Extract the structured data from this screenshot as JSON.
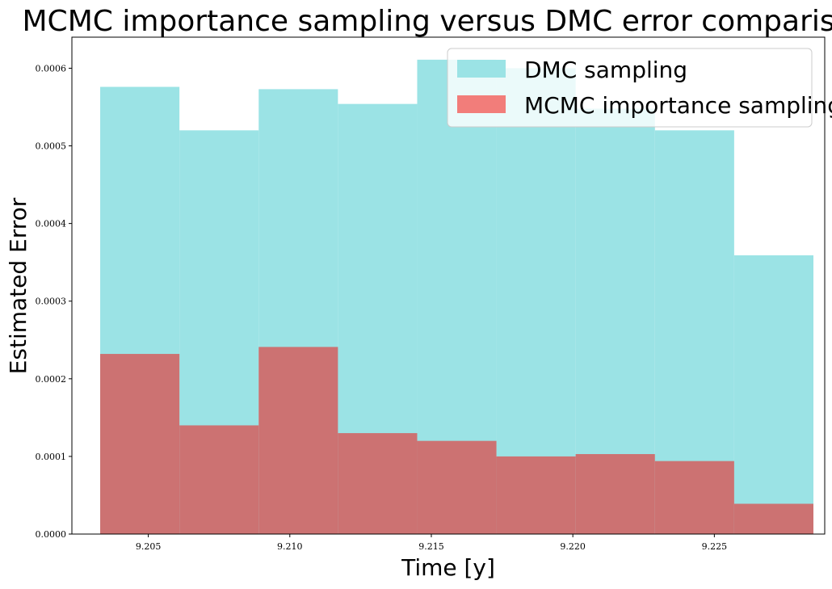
{
  "chart_data": {
    "type": "bar",
    "title": "MCMC importance sampling versus DMC error comparison",
    "xlabel": "Time [y]",
    "ylabel": "Estimated Error",
    "xlim": [
      9.2023,
      9.2289
    ],
    "ylim": [
      0,
      0.00064
    ],
    "grid": false,
    "legend_position": "top-right",
    "bin_edges": [
      9.2033,
      9.2061,
      9.2089,
      9.2117,
      9.2145,
      9.2173,
      9.2201,
      9.2229,
      9.2257,
      9.2285
    ],
    "series": [
      {
        "name": "DMC sampling",
        "color": "#9be3e5",
        "values": [
          0.000576,
          0.00052,
          0.000573,
          0.000554,
          0.000611,
          0.0006,
          0.000548,
          0.00052,
          0.000359
        ]
      },
      {
        "name": "MCMC importance sampling",
        "color": "#cc7272",
        "legend_color": "#f27d7a",
        "values": [
          0.000232,
          0.00014,
          0.000241,
          0.00013,
          0.00012,
          0.0001,
          0.000103,
          9.4e-05,
          3.9e-05
        ]
      }
    ],
    "x_ticks": [
      {
        "value": 9.205,
        "label": "9.205"
      },
      {
        "value": 9.21,
        "label": "9.210"
      },
      {
        "value": 9.215,
        "label": "9.215"
      },
      {
        "value": 9.22,
        "label": "9.220"
      },
      {
        "value": 9.225,
        "label": "9.225"
      }
    ],
    "y_ticks": [
      {
        "value": 0,
        "label": "0.0000"
      },
      {
        "value": 0.0001,
        "label": "0.0001"
      },
      {
        "value": 0.0002,
        "label": "0.0002"
      },
      {
        "value": 0.0003,
        "label": "0.0003"
      },
      {
        "value": 0.0004,
        "label": "0.0004"
      },
      {
        "value": 0.0005,
        "label": "0.0005"
      },
      {
        "value": 0.0006,
        "label": "0.0006"
      }
    ]
  }
}
